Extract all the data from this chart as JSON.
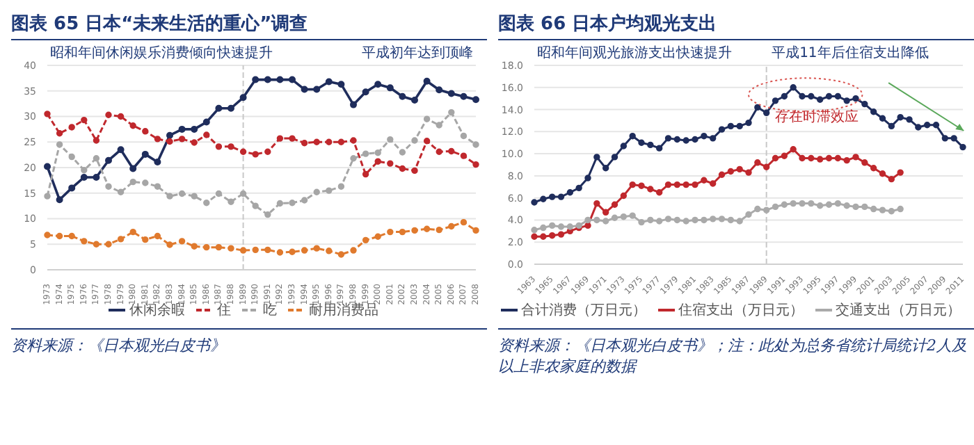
{
  "chart_data": [
    {
      "type": "line",
      "title": "图表 65  日本“未来生活的重心”调查",
      "categories": [
        "1973",
        "1974",
        "1975",
        "1976",
        "1977",
        "1978",
        "1979",
        "1980",
        "1981",
        "1982",
        "1983",
        "1984",
        "1985",
        "1986",
        "1987",
        "1988",
        "1989",
        "1990",
        "1991",
        "1992",
        "1993",
        "1994",
        "1995",
        "1996",
        "1997",
        "1998",
        "1999",
        "2000",
        "2001",
        "2002",
        "2003",
        "2004",
        "2005",
        "2006",
        "2007",
        "2008"
      ],
      "series": [
        {
          "name": "休闲余暇",
          "color": "#1f2d5c",
          "line_style": "solid",
          "values": [
            20.2,
            13.7,
            16.0,
            18.1,
            18.1,
            21.4,
            23.5,
            19.8,
            22.6,
            21.1,
            26.3,
            27.5,
            27.5,
            28.9,
            31.6,
            31.6,
            33.7,
            37.2,
            37.2,
            37.2,
            37.2,
            35.3,
            35.3,
            36.8,
            36.3,
            32.3,
            34.8,
            36.3,
            35.6,
            33.9,
            33.2,
            36.9,
            35.2,
            34.5,
            33.9,
            33.3
          ]
        },
        {
          "name": "住",
          "color": "#c0282d",
          "line_style": "dashed",
          "values": [
            30.5,
            26.7,
            27.9,
            29.3,
            25.3,
            30.3,
            30.0,
            28.2,
            27.1,
            25.6,
            25.1,
            25.6,
            24.9,
            26.4,
            24.1,
            24.1,
            23.1,
            22.6,
            23.1,
            25.7,
            25.7,
            24.8,
            25.0,
            25.0,
            25.0,
            25.3,
            18.7,
            21.2,
            20.8,
            19.8,
            19.4,
            25.2,
            23.1,
            23.2,
            22.3,
            20.6
          ]
        },
        {
          "name": "吃",
          "color": "#a6a6a6",
          "line_style": "dashed",
          "values": [
            14.4,
            24.5,
            22.1,
            19.5,
            21.8,
            16.3,
            15.2,
            17.2,
            17.0,
            16.3,
            14.4,
            14.9,
            14.4,
            13.1,
            14.9,
            13.3,
            14.9,
            12.5,
            10.8,
            13.0,
            13.1,
            13.6,
            15.2,
            15.5,
            16.3,
            21.8,
            22.7,
            22.9,
            25.5,
            23.0,
            25.3,
            29.5,
            28.3,
            30.8,
            26.2,
            24.5
          ]
        },
        {
          "name": "耐用消费品",
          "color": "#e07a2e",
          "line_style": "dashed",
          "values": [
            6.8,
            6.6,
            6.6,
            5.6,
            5.0,
            5.0,
            6.0,
            7.4,
            5.9,
            6.6,
            4.9,
            5.6,
            4.6,
            4.4,
            4.4,
            4.2,
            3.8,
            3.9,
            3.9,
            3.4,
            3.5,
            3.8,
            4.2,
            3.7,
            3.0,
            3.8,
            5.8,
            6.5,
            7.4,
            7.4,
            7.7,
            8.0,
            7.8,
            8.5,
            9.3,
            7.7
          ]
        }
      ],
      "ylim": [
        0,
        40
      ],
      "yticks": [
        0,
        5,
        10,
        15,
        20,
        25,
        30,
        35,
        40
      ],
      "grid": "y",
      "legend": "bottom",
      "marker": "circle",
      "ref_lines": [
        {
          "axis": "x",
          "value": "1989",
          "line_style": "dashed",
          "color": "#c8c8c8"
        }
      ],
      "annotations": [
        "昭和年间休闲娱乐消费倾向快速提升",
        "平成初年达到顶峰",
        "资料来源：《日本观光白皮书》"
      ]
    },
    {
      "type": "line",
      "title": "图表 66  日本户均观光支出",
      "categories": [
        "1963",
        null,
        "1965",
        null,
        "1967",
        null,
        "1969",
        null,
        "1971",
        null,
        "1973",
        null,
        "1975",
        null,
        "1977",
        null,
        "1979",
        null,
        "1981",
        null,
        "1983",
        null,
        "1985",
        null,
        "1987",
        null,
        "1989",
        null,
        "1991",
        null,
        "1993",
        null,
        "1995",
        null,
        "1997",
        null,
        "1999",
        null,
        "2001",
        null,
        "2003",
        null,
        "2005",
        null,
        "2007",
        null,
        "2009",
        null,
        "2011"
      ],
      "series": [
        {
          "name": "合计消费（万日元）",
          "color": "#1f2d5c",
          "values": [
            5.6,
            5.9,
            6.1,
            6.1,
            6.5,
            6.9,
            7.8,
            9.7,
            8.7,
            9.7,
            10.7,
            11.6,
            11.0,
            10.8,
            10.5,
            11.4,
            11.3,
            11.2,
            11.3,
            11.6,
            11.4,
            12.2,
            12.5,
            12.5,
            12.8,
            14.2,
            13.7,
            14.8,
            15.2,
            16.0,
            15.2,
            15.2,
            14.9,
            15.2,
            15.2,
            14.8,
            15.0,
            14.5,
            13.8,
            13.2,
            12.5,
            13.3,
            13.1,
            12.4,
            12.6,
            12.6,
            11.4,
            11.4,
            10.6
          ]
        },
        {
          "name": "住宿支出（万日元）",
          "color": "#c0282d",
          "values": [
            2.5,
            2.5,
            2.6,
            2.7,
            3.0,
            3.3,
            3.5,
            5.5,
            4.7,
            5.4,
            6.2,
            7.2,
            7.1,
            6.8,
            6.5,
            7.2,
            7.2,
            7.2,
            7.2,
            7.6,
            7.3,
            8.1,
            8.4,
            8.6,
            8.3,
            9.2,
            8.8,
            9.6,
            9.8,
            10.4,
            9.6,
            9.6,
            9.5,
            9.6,
            9.6,
            9.4,
            9.7,
            9.2,
            8.7,
            8.2,
            7.7,
            8.3,
            null,
            null,
            null,
            null,
            null,
            null,
            null
          ]
        },
        {
          "name": "交通支出（万日元）",
          "color": "#aaaaaa",
          "values": [
            3.1,
            3.3,
            3.5,
            3.4,
            3.4,
            3.5,
            4.0,
            4.0,
            3.9,
            4.2,
            4.3,
            4.4,
            3.8,
            4.0,
            3.9,
            4.1,
            4.0,
            3.9,
            4.0,
            4.0,
            4.1,
            4.1,
            4.0,
            3.9,
            4.5,
            5.0,
            4.9,
            5.2,
            5.4,
            5.5,
            5.5,
            5.5,
            5.3,
            5.4,
            5.5,
            5.3,
            5.2,
            5.2,
            5.0,
            4.9,
            4.8,
            5.0,
            null,
            null,
            null,
            null,
            null,
            null,
            null
          ]
        }
      ],
      "ylim": [
        0,
        18
      ],
      "yticks": [
        {
          "value": 0,
          "label": "0.0"
        },
        {
          "value": 2,
          "label": "2.0"
        },
        {
          "value": 4,
          "label": "4.0"
        },
        {
          "value": 6,
          "label": "6.0"
        },
        {
          "value": 8,
          "label": "8.0"
        },
        {
          "value": 10,
          "label": "10.0"
        },
        {
          "value": 12,
          "label": "12.0"
        },
        {
          "value": 14,
          "label": "14.0"
        },
        {
          "value": 16,
          "label": "16.0"
        },
        {
          "value": 18,
          "label": "18.0"
        }
      ],
      "grid": "y",
      "legend": "bottom",
      "marker": "circle",
      "line_style": "solid",
      "ref_lines": [
        {
          "axis": "x",
          "value": "1989",
          "line_style": "dashed",
          "color": "#c8c8c8"
        }
      ],
      "annotations": [
        "昭和年间观光旅游支出快速提升",
        "平成11年后住宿支出降低",
        "存在时滞效应",
        "资料来源：《日本观光白皮书》；注：此处为总务省统计局统计2人及以上非农家庭的数据"
      ]
    }
  ]
}
